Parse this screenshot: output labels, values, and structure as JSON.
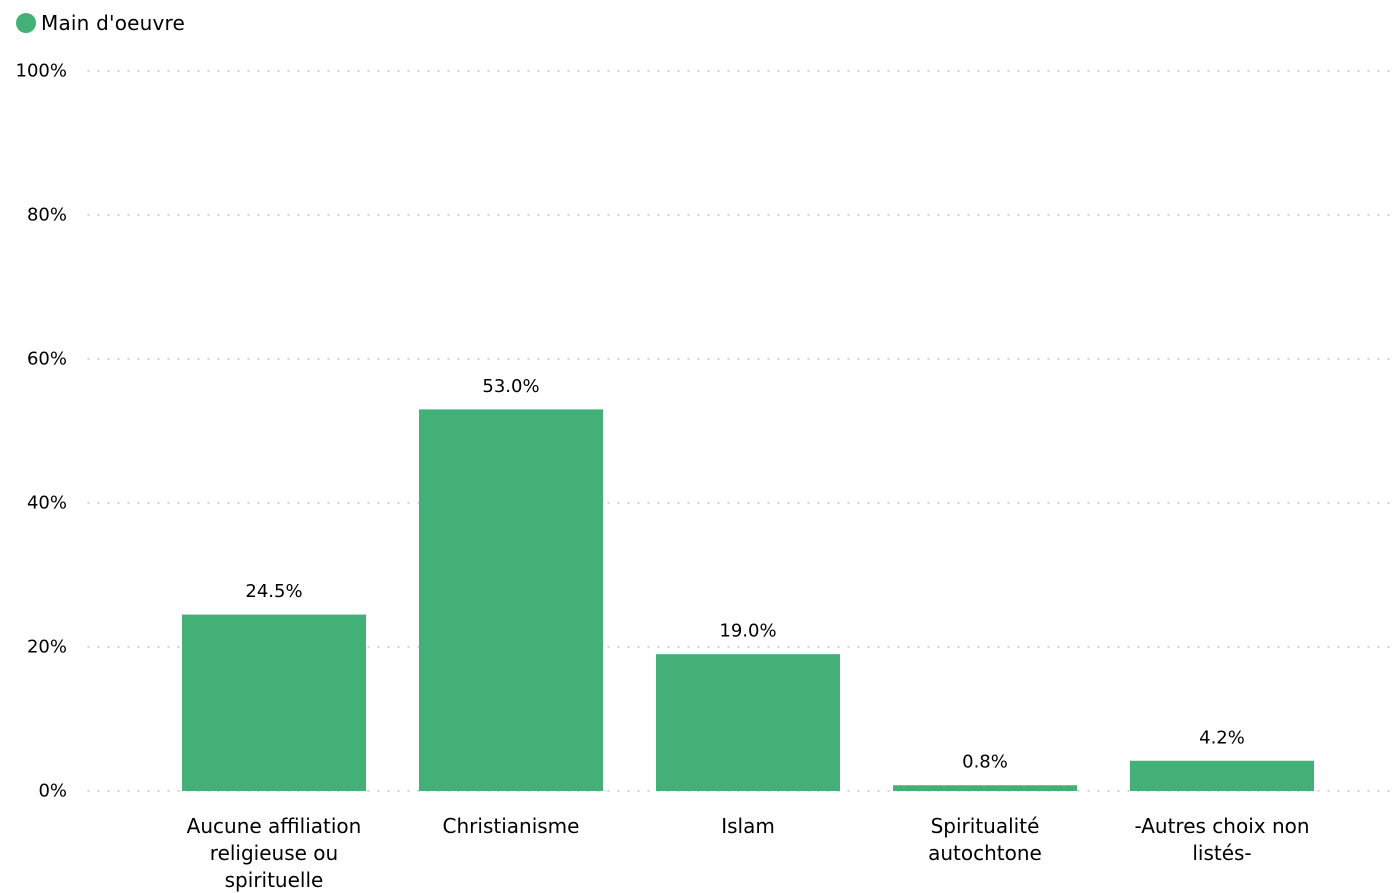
{
  "chart_data": {
    "type": "bar",
    "categories": [
      "Aucune affiliation religieuse ou spirituelle",
      "Christianisme",
      "Islam",
      "Spiritualité autochtone",
      "-Autres choix non listés-"
    ],
    "category_lines": [
      [
        "Aucune affiliation",
        "religieuse ou",
        "spirituelle"
      ],
      [
        "Christianisme"
      ],
      [
        "Islam"
      ],
      [
        "Spiritualité",
        "autochtone"
      ],
      [
        "-Autres choix non",
        "listés-"
      ]
    ],
    "series": [
      {
        "name": "Main d'oeuvre",
        "color": "#43b077",
        "values": [
          24.5,
          53.0,
          19.0,
          0.8,
          4.2
        ],
        "labels": [
          "24.5%",
          "53.0%",
          "19.0%",
          "0.8%",
          "4.2%"
        ]
      }
    ],
    "ylim": [
      0,
      100
    ],
    "yticks": [
      0,
      20,
      40,
      60,
      80,
      100
    ],
    "ytick_labels": [
      "0%",
      "20%",
      "40%",
      "60%",
      "80%",
      "100%"
    ],
    "grid": true,
    "legend_position": "top-left"
  }
}
